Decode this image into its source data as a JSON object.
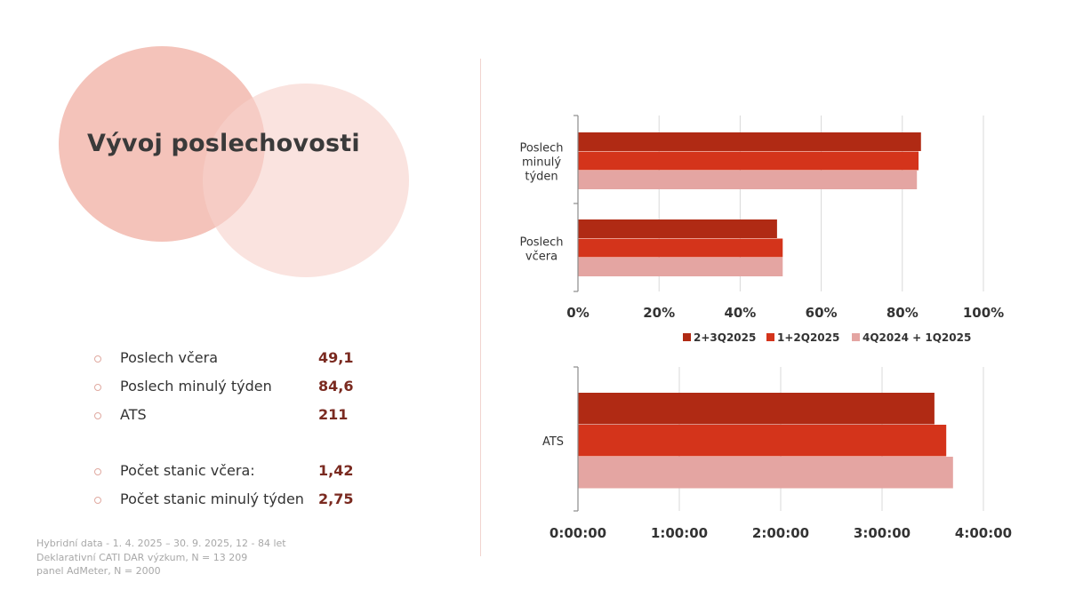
{
  "slide": {
    "title": "Vývoj poslechovosti",
    "stats": [
      {
        "label": "Poslech včera",
        "value": "49,1"
      },
      {
        "label": "Poslech minulý týden",
        "value": "84,6"
      },
      {
        "label": "ATS",
        "value": "211"
      },
      {
        "label": "Počet stanic včera:",
        "value": "1,42"
      },
      {
        "label": "Počet stanic minulý týden",
        "value": "2,75"
      }
    ],
    "footnote": [
      "Hybridní data - 1. 4. 2025 – 30. 9. 2025, 12 - 84 let",
      "Deklarativní CATI DAR výzkum, N = 13 209",
      "panel AdMeter, N = 2000"
    ]
  },
  "colors": {
    "series": [
      "#b02a14",
      "#d4341b",
      "#e4a5a2"
    ],
    "grid": "#d9d9d9",
    "axis": "#8c8c8c",
    "circle_primary": "#f4c3ba",
    "circle_secondary": "#f7d2cb",
    "value_text": "#7a2a20"
  },
  "chart_data": [
    {
      "type": "bar",
      "orientation": "horizontal",
      "categories": [
        "Poslech minulý týden",
        "Poslech včera"
      ],
      "category_label_lines": [
        [
          "Poslech",
          "minulý",
          "týden"
        ],
        [
          "Poslech",
          "včera"
        ]
      ],
      "series": [
        {
          "name": "2+3Q2025",
          "values": [
            0.846,
            0.491
          ]
        },
        {
          "name": "1+2Q2025",
          "values": [
            0.84,
            0.505
          ]
        },
        {
          "name": "4Q2024 + 1Q2025",
          "values": [
            0.836,
            0.505
          ]
        }
      ],
      "xlim": [
        0,
        1
      ],
      "xticks": [
        0,
        0.2,
        0.4,
        0.6,
        0.8,
        1.0
      ],
      "xtick_labels": [
        "0%",
        "20%",
        "40%",
        "60%",
        "80%",
        "100%"
      ],
      "grid": true,
      "legend": "bottom"
    },
    {
      "type": "bar",
      "orientation": "horizontal",
      "categories": [
        "ATS"
      ],
      "category_label_lines": [
        [
          "ATS"
        ]
      ],
      "series": [
        {
          "name": "2+3Q2025",
          "values": [
            211
          ]
        },
        {
          "name": "1+2Q2025",
          "values": [
            218
          ]
        },
        {
          "name": "4Q2024 + 1Q2025",
          "values": [
            222
          ]
        }
      ],
      "value_unit": "minutes",
      "xlim": [
        0,
        240
      ],
      "xticks": [
        0,
        60,
        120,
        180,
        240
      ],
      "xtick_labels": [
        "0:00:00",
        "1:00:00",
        "2:00:00",
        "3:00:00",
        "4:00:00"
      ],
      "grid": true,
      "legend": "none"
    }
  ]
}
